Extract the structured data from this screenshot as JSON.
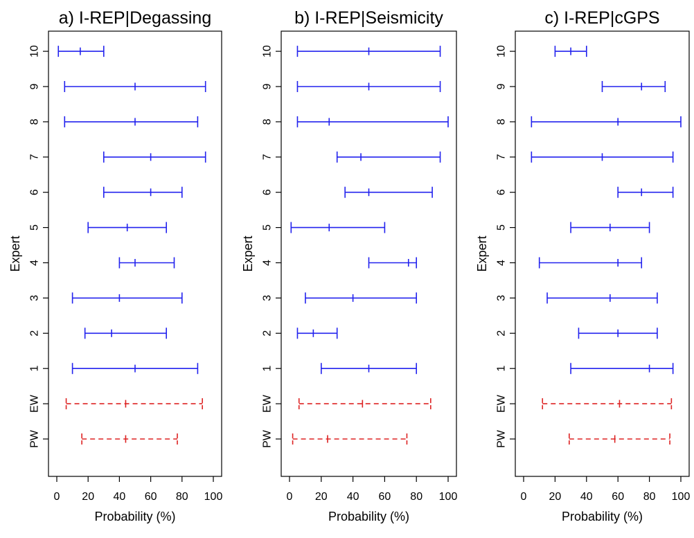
{
  "chart_data": [
    {
      "type": "errorbar",
      "title": "a) I-REP|Degassing",
      "xlabel": "Probability (%)",
      "ylabel": "Expert",
      "xlim": [
        0,
        100
      ],
      "xticks": [
        0,
        20,
        40,
        60,
        80,
        100
      ],
      "categories": [
        "PW",
        "EW",
        "1",
        "2",
        "3",
        "4",
        "5",
        "6",
        "7",
        "8",
        "9",
        "10"
      ],
      "series": [
        {
          "style": "solid",
          "color": "#2222ee",
          "rows": [
            {
              "label": "1",
              "low": 10,
              "mid": 50,
              "high": 90
            },
            {
              "label": "2",
              "low": 18,
              "mid": 35,
              "high": 70
            },
            {
              "label": "3",
              "low": 10,
              "mid": 40,
              "high": 80
            },
            {
              "label": "4",
              "low": 40,
              "mid": 50,
              "high": 75
            },
            {
              "label": "5",
              "low": 20,
              "mid": 45,
              "high": 70
            },
            {
              "label": "6",
              "low": 30,
              "mid": 60,
              "high": 80
            },
            {
              "label": "7",
              "low": 30,
              "mid": 60,
              "high": 95
            },
            {
              "label": "8",
              "low": 5,
              "mid": 50,
              "high": 90
            },
            {
              "label": "9",
              "low": 5,
              "mid": 50,
              "high": 95
            },
            {
              "label": "10",
              "low": 1,
              "mid": 15,
              "high": 30
            }
          ]
        },
        {
          "style": "dashed",
          "color": "#dd2222",
          "rows": [
            {
              "label": "EW",
              "low": 6,
              "mid": 44,
              "high": 93
            },
            {
              "label": "PW",
              "low": 16,
              "mid": 44,
              "high": 77
            }
          ]
        }
      ]
    },
    {
      "type": "errorbar",
      "title": "b) I-REP|Seismicity",
      "xlabel": "Probability (%)",
      "ylabel": "Expert",
      "xlim": [
        0,
        100
      ],
      "xticks": [
        0,
        20,
        40,
        60,
        80,
        100
      ],
      "categories": [
        "PW",
        "EW",
        "1",
        "2",
        "3",
        "4",
        "5",
        "6",
        "7",
        "8",
        "9",
        "10"
      ],
      "series": [
        {
          "style": "solid",
          "color": "#2222ee",
          "rows": [
            {
              "label": "1",
              "low": 20,
              "mid": 50,
              "high": 80
            },
            {
              "label": "2",
              "low": 5,
              "mid": 15,
              "high": 30
            },
            {
              "label": "3",
              "low": 10,
              "mid": 40,
              "high": 80
            },
            {
              "label": "4",
              "low": 50,
              "mid": 75,
              "high": 80
            },
            {
              "label": "5",
              "low": 1,
              "mid": 25,
              "high": 60
            },
            {
              "label": "6",
              "low": 35,
              "mid": 50,
              "high": 90
            },
            {
              "label": "7",
              "low": 30,
              "mid": 45,
              "high": 95
            },
            {
              "label": "8",
              "low": 5,
              "mid": 25,
              "high": 100
            },
            {
              "label": "9",
              "low": 5,
              "mid": 50,
              "high": 95
            },
            {
              "label": "10",
              "low": 5,
              "mid": 50,
              "high": 95
            }
          ]
        },
        {
          "style": "dashed",
          "color": "#dd2222",
          "rows": [
            {
              "label": "EW",
              "low": 6,
              "mid": 46,
              "high": 89
            },
            {
              "label": "PW",
              "low": 2,
              "mid": 24,
              "high": 74
            }
          ]
        }
      ]
    },
    {
      "type": "errorbar",
      "title": "c) I-REP|cGPS",
      "xlabel": "Probability (%)",
      "ylabel": "Expert",
      "xlim": [
        0,
        100
      ],
      "xticks": [
        0,
        20,
        40,
        60,
        80,
        100
      ],
      "categories": [
        "PW",
        "EW",
        "1",
        "2",
        "3",
        "4",
        "5",
        "6",
        "7",
        "8",
        "9",
        "10"
      ],
      "series": [
        {
          "style": "solid",
          "color": "#2222ee",
          "rows": [
            {
              "label": "1",
              "low": 30,
              "mid": 80,
              "high": 95
            },
            {
              "label": "2",
              "low": 35,
              "mid": 60,
              "high": 85
            },
            {
              "label": "3",
              "low": 15,
              "mid": 55,
              "high": 85
            },
            {
              "label": "4",
              "low": 10,
              "mid": 60,
              "high": 75
            },
            {
              "label": "5",
              "low": 30,
              "mid": 55,
              "high": 80
            },
            {
              "label": "6",
              "low": 60,
              "mid": 75,
              "high": 95
            },
            {
              "label": "7",
              "low": 5,
              "mid": 50,
              "high": 95
            },
            {
              "label": "8",
              "low": 5,
              "mid": 60,
              "high": 100
            },
            {
              "label": "9",
              "low": 50,
              "mid": 75,
              "high": 90
            },
            {
              "label": "10",
              "low": 20,
              "mid": 30,
              "high": 40
            }
          ]
        },
        {
          "style": "dashed",
          "color": "#dd2222",
          "rows": [
            {
              "label": "EW",
              "low": 12,
              "mid": 61,
              "high": 94
            },
            {
              "label": "PW",
              "low": 29,
              "mid": 58,
              "high": 93
            }
          ]
        }
      ]
    }
  ]
}
